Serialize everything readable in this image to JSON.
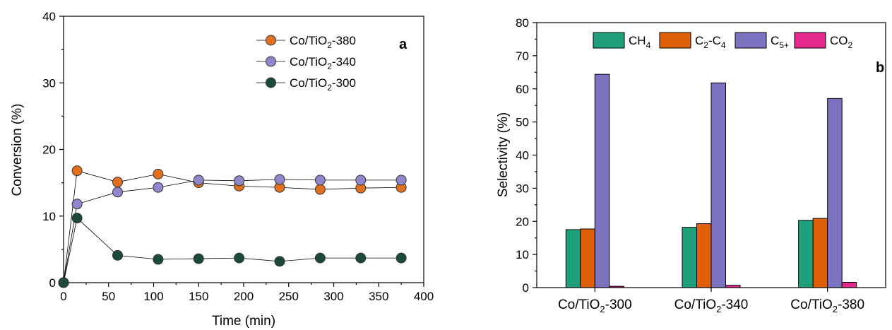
{
  "chart_data": [
    {
      "panel": "a",
      "type": "line",
      "xlabel": "Time (min)",
      "ylabel": "Conversion (%)",
      "xlim": [
        0,
        400
      ],
      "ylim": [
        0,
        40
      ],
      "xticks": [
        "0",
        "50",
        "100",
        "150",
        "200",
        "250",
        "300",
        "350",
        "400"
      ],
      "yticks": [
        "0",
        "10",
        "20",
        "30",
        "40"
      ],
      "grid": false,
      "legend_position": "top-right",
      "series": [
        {
          "name_main": "Co/TiO",
          "name_sub": "2",
          "name_tail": "-380",
          "color": "#e07020",
          "x": [
            0,
            15,
            60,
            105,
            150,
            195,
            240,
            285,
            330,
            375
          ],
          "y": [
            0,
            16.8,
            15.1,
            16.3,
            15.0,
            14.5,
            14.3,
            14.0,
            14.2,
            14.3
          ]
        },
        {
          "name_main": "Co/TiO",
          "name_sub": "2",
          "name_tail": "-340",
          "color": "#8f86cc",
          "x": [
            0,
            15,
            60,
            105,
            150,
            195,
            240,
            285,
            330,
            375
          ],
          "y": [
            0,
            11.8,
            13.6,
            14.3,
            15.4,
            15.3,
            15.5,
            15.4,
            15.4,
            15.4
          ]
        },
        {
          "name_main": "Co/TiO",
          "name_sub": "2",
          "name_tail": "-300",
          "color": "#1c4a38",
          "x": [
            0,
            15,
            60,
            105,
            150,
            195,
            240,
            285,
            330,
            375
          ],
          "y": [
            0,
            9.7,
            4.1,
            3.5,
            3.6,
            3.7,
            3.2,
            3.7,
            3.7,
            3.7
          ]
        }
      ]
    },
    {
      "panel": "b",
      "type": "bar",
      "xlabel": "",
      "ylabel": "Selectivity (%)",
      "ylim": [
        0,
        80
      ],
      "yticks": [
        "0",
        "10",
        "20",
        "30",
        "40",
        "50",
        "60",
        "70",
        "80"
      ],
      "grid": false,
      "legend_position": "top",
      "categories": [
        {
          "main": "Co/TiO",
          "sub": "2",
          "tail": "-300"
        },
        {
          "main": "Co/TiO",
          "sub": "2",
          "tail": "-340"
        },
        {
          "main": "Co/TiO",
          "sub": "2",
          "tail": "-380"
        }
      ],
      "series": [
        {
          "name_main": "CH",
          "name_sub": "4",
          "name_tail": "",
          "color": "#1fa07a",
          "values": [
            17.5,
            18.2,
            20.3
          ]
        },
        {
          "name_main": "C",
          "name_sub": "2",
          "name_tail": "-C",
          "name_sub2": "4",
          "color": "#e0600a",
          "values": [
            17.7,
            19.3,
            20.9
          ]
        },
        {
          "name_main": "C",
          "name_sub": "5+",
          "name_tail": "",
          "color": "#7b73bf",
          "values": [
            64.4,
            61.8,
            57.1
          ]
        },
        {
          "name_main": "CO",
          "name_sub": "2",
          "name_tail": "",
          "color": "#e5288c",
          "values": [
            0.4,
            0.7,
            1.6
          ]
        }
      ]
    }
  ]
}
